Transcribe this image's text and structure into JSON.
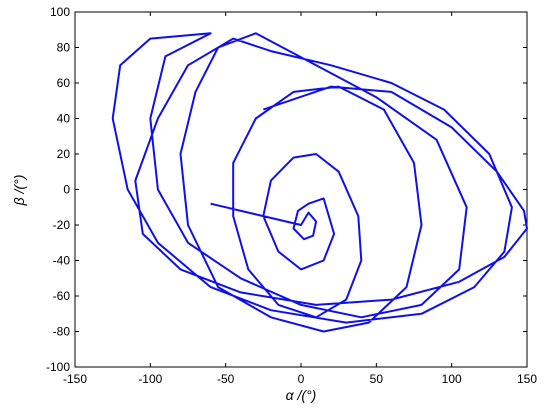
{
  "chart_data": {
    "type": "line",
    "x_label": "α /(°)",
    "y_label": "β /(°)",
    "xlim": [
      -150,
      150
    ],
    "xticks": [
      -150,
      -100,
      -50,
      0,
      50,
      100,
      150
    ],
    "ylim": [
      -100,
      100
    ],
    "yticks": [
      -100,
      -80,
      -60,
      -40,
      -20,
      0,
      20,
      40,
      60,
      80,
      100
    ],
    "grid": false,
    "series": [
      {
        "color": "#1010e8",
        "x": [
          -60,
          0,
          5,
          10,
          8,
          2,
          -5,
          -2,
          5,
          15,
          22,
          15,
          0,
          -15,
          -25,
          -20,
          -5,
          10,
          25,
          38,
          40,
          30,
          10,
          -15,
          -35,
          -45,
          -45,
          -30,
          -5,
          25,
          55,
          75,
          80,
          70,
          45,
          15,
          -20,
          -55,
          -75,
          -80,
          -70,
          -55,
          -30,
          10,
          50,
          90,
          110,
          105,
          80,
          40,
          0,
          -40,
          -75,
          -95,
          -100,
          -90,
          -60,
          -100,
          -120,
          -125,
          -115,
          -95,
          -60,
          -20,
          30,
          80,
          115,
          135,
          140,
          125,
          95,
          60,
          20,
          -20,
          -45,
          -75,
          -95,
          -110,
          -105,
          -80,
          -40,
          10,
          60,
          105,
          135,
          150,
          148,
          130,
          100,
          60,
          20,
          -25
        ],
        "y": [
          -8,
          -20,
          -13,
          -18,
          -26,
          -28,
          -22,
          -12,
          -8,
          -5,
          -25,
          -40,
          -45,
          -35,
          -15,
          5,
          18,
          20,
          10,
          -15,
          -40,
          -62,
          -72,
          -65,
          -45,
          -15,
          15,
          40,
          55,
          58,
          45,
          15,
          -20,
          -55,
          -75,
          -80,
          -72,
          -55,
          -20,
          20,
          55,
          80,
          88,
          70,
          52,
          28,
          -10,
          -45,
          -65,
          -72,
          -65,
          -50,
          -30,
          0,
          40,
          75,
          88,
          85,
          70,
          40,
          0,
          -30,
          -55,
          -68,
          -75,
          -70,
          -55,
          -35,
          -10,
          20,
          45,
          60,
          70,
          78,
          85,
          70,
          40,
          5,
          -25,
          -45,
          -58,
          -65,
          -62,
          -52,
          -38,
          -22,
          -12,
          10,
          35,
          55,
          58,
          45
        ]
      }
    ]
  }
}
